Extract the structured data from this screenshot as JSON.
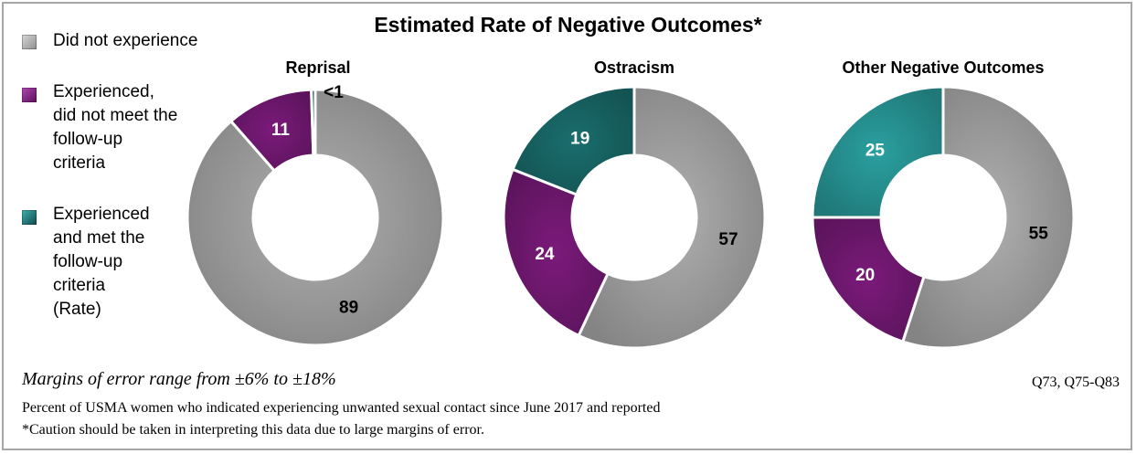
{
  "title": "Estimated Rate of Negative Outcomes*",
  "legend": [
    {
      "label": "Did not experience",
      "color": "#b0b0b0"
    },
    {
      "label": "Experienced, did not meet the follow-up criteria",
      "color": "#7b1a7b"
    },
    {
      "label": "Experienced and met the follow-up criteria (Rate)",
      "color": "#1a6e6e"
    }
  ],
  "legend_lines": [
    [
      "Did not experience"
    ],
    [
      "Experienced,",
      "did not meet the",
      "follow-up",
      "criteria"
    ],
    [
      "Experienced",
      "and met the",
      "follow-up",
      "criteria",
      "(Rate)"
    ]
  ],
  "chart_data": [
    {
      "type": "pie",
      "subtitle": "Reprisal",
      "slices": [
        {
          "name": "Did not experience",
          "value": 89,
          "label": "89",
          "color": "#b0b0b0"
        },
        {
          "name": "Experienced, did not meet the follow-up criteria",
          "value": 11,
          "label": "11",
          "color": "#7b1a7b"
        },
        {
          "name": "Experienced and met the follow-up criteria (Rate)",
          "value": 0.5,
          "label": "<1",
          "color": "#1a6e6e"
        }
      ]
    },
    {
      "type": "pie",
      "subtitle": "Ostracism",
      "slices": [
        {
          "name": "Did not experience",
          "value": 57,
          "label": "57",
          "color": "#b0b0b0"
        },
        {
          "name": "Experienced, did not meet the follow-up criteria",
          "value": 24,
          "label": "24",
          "color": "#7b1a7b"
        },
        {
          "name": "Experienced and met the follow-up criteria (Rate)",
          "value": 19,
          "label": "19",
          "color": "#1a6e6e"
        }
      ]
    },
    {
      "type": "pie",
      "subtitle": "Other Negative Outcomes",
      "slices": [
        {
          "name": "Did not experience",
          "value": 55,
          "label": "55",
          "color": "#b0b0b0"
        },
        {
          "name": "Experienced, did not meet the follow-up criteria",
          "value": 20,
          "label": "20",
          "color": "#7b1a7b"
        },
        {
          "name": "Experienced and met the follow-up criteria (Rate)",
          "value": 25,
          "label": "25",
          "color": "#2aa0a0"
        }
      ]
    }
  ],
  "margin_note": "Margins of error range from ±6% to ±18%",
  "question_ref": "Q73, Q75-Q83",
  "footnote1": "Percent of USMA women who indicated experiencing  unwanted sexual contact since June 2017 and reported",
  "footnote2": "*Caution should be taken in interpreting  this data due to large margins of error."
}
